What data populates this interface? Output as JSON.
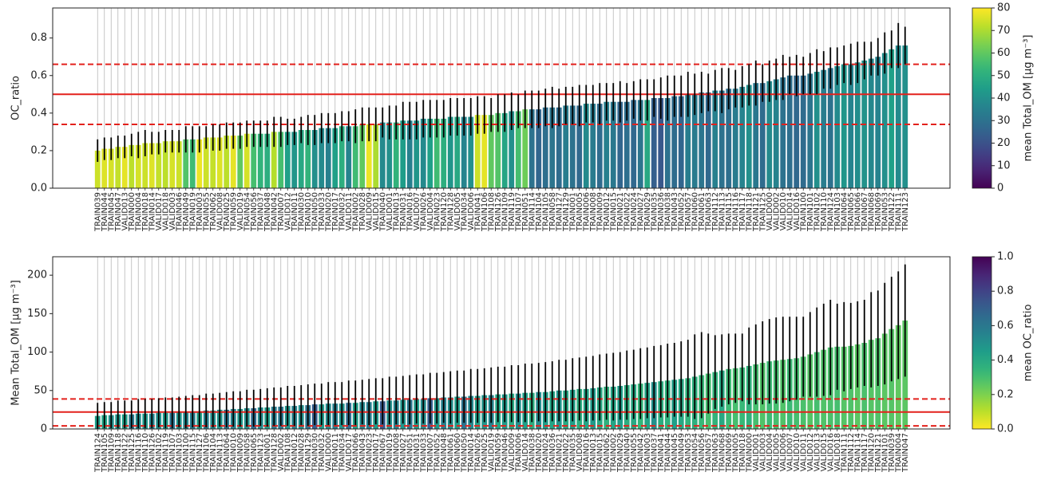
{
  "chart_data": [
    {
      "type": "bar",
      "ylabel": "OC_ratio",
      "categories": [
        "TRAIN039",
        "TRAIN044",
        "TRAIN045",
        "TRAIN047",
        "VALID013",
        "TRAIN000",
        "TRAIN004",
        "TRAIN018",
        "TRAIN014",
        "VALID017",
        "VALID018",
        "VALID003",
        "TRAIN046",
        "TRAIN049",
        "TRAIN019",
        "TRAIN003",
        "TRAIN055",
        "TRAIN062",
        "VALID008",
        "TRAIN025",
        "TRAIN059",
        "VALID019",
        "TRAIN054",
        "TRAIN056",
        "TRAIN037",
        "TRAIN048",
        "TRAIN042",
        "TRAIN007",
        "VALID012",
        "TRAIN011",
        "TRAIN030",
        "TRAIN010",
        "TRAIN050",
        "TRAIN033",
        "TRAIN020",
        "TRAIN017",
        "TRAIN032",
        "VALID011",
        "TRAIN002",
        "TRAIN028",
        "VALID009",
        "VALID015",
        "TRAIN040",
        "VALID001",
        "TRAIN013",
        "TRAIN031",
        "TRAIN016",
        "VALID007",
        "TRAIN026",
        "VALID004",
        "TRAIN023",
        "TRAIN120",
        "TRAIN128",
        "VALID005",
        "TRAIN034",
        "VALID006",
        "TRAIN041",
        "TRAIN106",
        "TRAIN108",
        "TRAIN126",
        "TRAIN109",
        "TRAIN119",
        "TRAIN107",
        "TRAIN051",
        "TRAIN114",
        "TRAIN104",
        "TRAIN105",
        "TRAIN058",
        "TRAIN127",
        "TRAIN129",
        "TRAIN001",
        "TRAIN005",
        "TRAIN006",
        "TRAIN008",
        "TRAIN009",
        "TRAIN012",
        "TRAIN015",
        "TRAIN021",
        "TRAIN022",
        "TRAIN024",
        "TRAIN027",
        "TRAIN029",
        "TRAIN035",
        "TRAIN036",
        "TRAIN038",
        "TRAIN043",
        "TRAIN052",
        "TRAIN057",
        "TRAIN060",
        "TRAIN061",
        "TRAIN063",
        "TRAIN112",
        "TRAIN113",
        "TRAIN115",
        "TRAIN116",
        "TRAIN117",
        "TRAIN118",
        "TRAIN121",
        "TRAIN125",
        "VALID000",
        "VALID002",
        "VALID010",
        "VALID014",
        "VALID016",
        "TRAIN100",
        "TRAIN101",
        "TRAIN102",
        "TRAIN110",
        "TRAIN124",
        "TRAIN103",
        "TRAIN064",
        "TRAIN065",
        "TRAIN066",
        "TRAIN067",
        "TRAIN068",
        "TRAIN069",
        "TRAIN053",
        "TRAIN122",
        "TRAIN111",
        "TRAIN123"
      ],
      "values": [
        0.2,
        0.21,
        0.21,
        0.22,
        0.22,
        0.23,
        0.23,
        0.24,
        0.24,
        0.24,
        0.25,
        0.25,
        0.25,
        0.26,
        0.26,
        0.26,
        0.27,
        0.27,
        0.27,
        0.28,
        0.28,
        0.28,
        0.29,
        0.29,
        0.29,
        0.29,
        0.3,
        0.3,
        0.3,
        0.3,
        0.31,
        0.31,
        0.31,
        0.32,
        0.32,
        0.32,
        0.33,
        0.33,
        0.33,
        0.34,
        0.34,
        0.34,
        0.35,
        0.35,
        0.35,
        0.36,
        0.36,
        0.36,
        0.37,
        0.37,
        0.37,
        0.37,
        0.38,
        0.38,
        0.38,
        0.38,
        0.39,
        0.39,
        0.39,
        0.4,
        0.4,
        0.41,
        0.41,
        0.42,
        0.42,
        0.42,
        0.43,
        0.43,
        0.43,
        0.44,
        0.44,
        0.44,
        0.45,
        0.45,
        0.45,
        0.46,
        0.46,
        0.46,
        0.46,
        0.47,
        0.47,
        0.47,
        0.48,
        0.48,
        0.48,
        0.49,
        0.49,
        0.5,
        0.5,
        0.51,
        0.51,
        0.52,
        0.52,
        0.53,
        0.53,
        0.54,
        0.55,
        0.56,
        0.56,
        0.57,
        0.58,
        0.59,
        0.6,
        0.6,
        0.6,
        0.61,
        0.62,
        0.63,
        0.64,
        0.65,
        0.66,
        0.66,
        0.67,
        0.68,
        0.69,
        0.7,
        0.72,
        0.74,
        0.76,
        0.76
      ],
      "errors": [
        0.06,
        0.06,
        0.06,
        0.06,
        0.06,
        0.06,
        0.07,
        0.07,
        0.06,
        0.06,
        0.06,
        0.06,
        0.06,
        0.07,
        0.07,
        0.07,
        0.06,
        0.07,
        0.07,
        0.07,
        0.07,
        0.07,
        0.07,
        0.07,
        0.07,
        0.07,
        0.08,
        0.08,
        0.07,
        0.07,
        0.07,
        0.08,
        0.08,
        0.08,
        0.08,
        0.08,
        0.08,
        0.08,
        0.09,
        0.09,
        0.09,
        0.09,
        0.08,
        0.09,
        0.09,
        0.1,
        0.1,
        0.1,
        0.1,
        0.1,
        0.1,
        0.1,
        0.1,
        0.1,
        0.1,
        0.1,
        0.1,
        0.1,
        0.09,
        0.1,
        0.1,
        0.1,
        0.09,
        0.1,
        0.1,
        0.1,
        0.1,
        0.11,
        0.1,
        0.1,
        0.1,
        0.11,
        0.1,
        0.1,
        0.11,
        0.1,
        0.1,
        0.11,
        0.1,
        0.1,
        0.11,
        0.11,
        0.1,
        0.11,
        0.12,
        0.11,
        0.11,
        0.12,
        0.11,
        0.11,
        0.1,
        0.11,
        0.12,
        0.11,
        0.1,
        0.11,
        0.11,
        0.12,
        0.1,
        0.11,
        0.11,
        0.12,
        0.1,
        0.11,
        0.1,
        0.11,
        0.12,
        0.1,
        0.11,
        0.1,
        0.1,
        0.11,
        0.11,
        0.1,
        0.09,
        0.1,
        0.11,
        0.1,
        0.12,
        0.1
      ],
      "color_values": [
        74,
        76,
        75,
        73,
        77,
        72,
        75,
        74,
        76,
        73,
        72,
        75,
        74,
        58,
        55,
        78,
        74,
        73,
        76,
        72,
        77,
        60,
        75,
        56,
        52,
        50,
        71,
        56,
        45,
        42,
        48,
        52,
        40,
        38,
        35,
        45,
        50,
        36,
        55,
        60,
        78,
        70,
        38,
        40,
        52,
        44,
        35,
        42,
        38,
        45,
        55,
        50,
        42,
        48,
        36,
        40,
        74,
        77,
        60,
        58,
        47,
        40,
        56,
        62,
        30,
        26,
        29,
        31,
        28,
        34,
        30,
        27,
        38,
        33,
        28,
        35,
        32,
        26,
        29,
        27,
        31,
        48,
        24,
        22,
        30,
        28,
        26,
        34,
        33,
        31,
        27,
        35,
        30,
        29,
        33,
        36,
        40,
        32,
        28,
        38,
        36,
        30,
        29,
        27,
        28,
        31,
        40,
        34,
        30,
        38,
        42,
        36,
        39,
        41,
        37,
        36,
        40,
        45,
        38,
        40
      ],
      "colormap": "viridis",
      "clim": [
        0,
        80
      ],
      "cticks": [
        0,
        10,
        20,
        30,
        40,
        50,
        60,
        70,
        80
      ],
      "colorbar_label": "mean Total_OM [µg m⁻³]",
      "ylim": [
        0,
        0.96
      ],
      "yticks": [
        {
          "value": 0,
          "label": "0.0"
        },
        0.2,
        0.4,
        0.6,
        0.8
      ],
      "hline_color": "#e3211c",
      "hlines": [
        {
          "value": 0.5,
          "style": "solid"
        },
        {
          "value": 0.34,
          "style": "dashed"
        },
        {
          "value": 0.66,
          "style": "dashed"
        }
      ],
      "grid": true
    },
    {
      "type": "bar",
      "ylabel": "Mean Total_OM [µg m⁻³]",
      "categories": [
        "TRAIN124",
        "TRAIN105",
        "TRAIN109",
        "TRAIN118",
        "TRAIN122",
        "TRAIN125",
        "TRAIN116",
        "TRAIN110",
        "TRAIN126",
        "TRAIN102",
        "TRAIN119",
        "TRAIN107",
        "TRAIN103",
        "TRAIN100",
        "TRAIN115",
        "TRAIN127",
        "TRAIN106",
        "TRAIN104",
        "TRAIN113",
        "TRAIN064",
        "TRAIN010",
        "TRAIN009",
        "TRAIN058",
        "TRAIN065",
        "TRAIN123",
        "TRAIN001",
        "TRAIN128",
        "VALID002",
        "TRAIN108",
        "TRAIN012",
        "TRAIN028",
        "TRAIN129",
        "TRAIN030",
        "TRAIN032",
        "VALID000",
        "TRAIN011",
        "TRAIN034",
        "VALID017",
        "TRAIN066",
        "TRAIN043",
        "TRAIN023",
        "TRAIN017",
        "TRAIN067",
        "TRAIN019",
        "TRAIN008",
        "TRAIN027",
        "TRAIN051",
        "TRAIN031",
        "TRAIN033",
        "TRAIN007",
        "TRAIN052",
        "TRAIN048",
        "TRAIN061",
        "TRAIN060",
        "TRAIN050",
        "TRAIN014",
        "TRAIN026",
        "TRAIN025",
        "VALID019",
        "TRAIN059",
        "TRAIN046",
        "VALID009",
        "TRAIN006",
        "VALID014",
        "TRAIN038",
        "TRAIN020",
        "TRAIN024",
        "TRAIN036",
        "TRAIN021",
        "TRAIN022",
        "TRAIN035",
        "VALID008",
        "TRAIN016",
        "TRAIN013",
        "TRAIN015",
        "TRAIN062",
        "TRAIN002",
        "TRAIN029",
        "TRAIN040",
        "TRAIN055",
        "TRAIN042",
        "TRAIN003",
        "TRAIN037",
        "TRAIN041",
        "TRAIN044",
        "TRAIN045",
        "TRAIN049",
        "TRAIN053",
        "TRAIN054",
        "TRAIN056",
        "TRAIN057",
        "TRAIN063",
        "TRAIN068",
        "TRAIN069",
        "TRAIN005",
        "TRAIN018",
        "TRAIN000",
        "VALID001",
        "VALID003",
        "VALID004",
        "VALID005",
        "VALID006",
        "VALID007",
        "VALID010",
        "VALID011",
        "VALID012",
        "VALID013",
        "VALID015",
        "VALID016",
        "VALID018",
        "TRAIN111",
        "TRAIN112",
        "TRAIN114",
        "TRAIN117",
        "TRAIN120",
        "TRAIN121",
        "TRAIN101",
        "TRAIN039",
        "TRAIN004",
        "TRAIN047"
      ],
      "values": [
        17,
        18,
        18,
        19,
        19,
        19,
        20,
        20,
        20,
        21,
        21,
        21,
        22,
        22,
        23,
        23,
        24,
        24,
        25,
        25,
        26,
        26,
        27,
        27,
        28,
        28,
        29,
        29,
        30,
        30,
        31,
        31,
        32,
        32,
        33,
        33,
        33,
        34,
        34,
        35,
        35,
        36,
        36,
        37,
        37,
        38,
        38,
        39,
        39,
        40,
        40,
        41,
        41,
        42,
        42,
        43,
        43,
        44,
        44,
        45,
        45,
        46,
        46,
        47,
        47,
        48,
        48,
        49,
        50,
        50,
        51,
        52,
        52,
        53,
        54,
        55,
        55,
        56,
        57,
        58,
        59,
        60,
        61,
        62,
        63,
        64,
        65,
        66,
        68,
        70,
        72,
        74,
        76,
        78,
        79,
        80,
        82,
        84,
        86,
        88,
        89,
        90,
        91,
        92,
        94,
        97,
        100,
        103,
        106,
        107,
        107,
        108,
        110,
        112,
        116,
        118,
        124,
        130,
        135,
        141
      ],
      "errors": [
        17,
        17,
        17,
        18,
        18,
        18,
        19,
        19,
        19,
        19,
        20,
        20,
        20,
        21,
        21,
        21,
        22,
        22,
        22,
        23,
        23,
        23,
        24,
        24,
        24,
        25,
        25,
        25,
        26,
        26,
        26,
        27,
        27,
        27,
        28,
        28,
        28,
        29,
        29,
        29,
        30,
        30,
        30,
        31,
        31,
        31,
        32,
        32,
        32,
        33,
        33,
        33,
        34,
        34,
        34,
        35,
        35,
        35,
        36,
        36,
        36,
        37,
        37,
        38,
        38,
        38,
        39,
        39,
        40,
        40,
        41,
        41,
        42,
        42,
        43,
        43,
        44,
        44,
        45,
        45,
        46,
        46,
        47,
        47,
        48,
        48,
        49,
        50,
        55,
        56,
        52,
        48,
        47,
        46,
        45,
        44,
        50,
        52,
        54,
        55,
        56,
        56,
        55,
        54,
        52,
        55,
        58,
        60,
        62,
        56,
        58,
        56,
        56,
        56,
        62,
        62,
        66,
        68,
        70,
        73
      ],
      "color_values": [
        0.45,
        0.42,
        0.5,
        0.48,
        0.44,
        0.6,
        0.52,
        0.47,
        0.55,
        0.5,
        0.46,
        0.62,
        0.49,
        0.53,
        0.58,
        0.44,
        0.56,
        0.51,
        0.48,
        0.6,
        0.55,
        0.47,
        0.5,
        0.66,
        0.52,
        0.45,
        0.58,
        0.6,
        0.48,
        0.55,
        0.5,
        0.62,
        0.7,
        0.46,
        0.52,
        0.57,
        0.49,
        0.65,
        0.44,
        0.54,
        0.58,
        0.46,
        0.72,
        0.5,
        0.55,
        0.48,
        0.6,
        0.45,
        0.52,
        0.7,
        0.47,
        0.56,
        0.5,
        0.45,
        0.62,
        0.53,
        0.44,
        0.48,
        0.55,
        0.42,
        0.46,
        0.4,
        0.5,
        0.44,
        0.38,
        0.52,
        0.45,
        0.42,
        0.48,
        0.4,
        0.44,
        0.38,
        0.42,
        0.46,
        0.4,
        0.36,
        0.42,
        0.45,
        0.38,
        0.4,
        0.34,
        0.42,
        0.5,
        0.38,
        0.36,
        0.44,
        0.4,
        0.35,
        0.37,
        0.33,
        0.3,
        0.35,
        0.4,
        0.32,
        0.3,
        0.33,
        0.36,
        0.3,
        0.28,
        0.32,
        0.3,
        0.28,
        0.32,
        0.3,
        0.29,
        0.27,
        0.3,
        0.28,
        0.29,
        0.3,
        0.27,
        0.28,
        0.26,
        0.29,
        0.27,
        0.28,
        0.26,
        0.27,
        0.25,
        0.26
      ],
      "colormap": "viridis_r",
      "clim": [
        0,
        1
      ],
      "cticks": [
        {
          "value": 0,
          "label": "0.0"
        },
        0.2,
        0.4,
        0.6,
        0.8,
        {
          "value": 1,
          "label": "1.0"
        }
      ],
      "colorbar_label": "mean OC_ratio",
      "ylim": [
        0,
        224
      ],
      "yticks": [
        0,
        50,
        100,
        150,
        200
      ],
      "hline_color": "#e3211c",
      "hlines": [
        {
          "value": 22,
          "style": "solid"
        },
        {
          "value": 4,
          "style": "dashed"
        },
        {
          "value": 39,
          "style": "dashed"
        }
      ],
      "grid": true
    }
  ]
}
